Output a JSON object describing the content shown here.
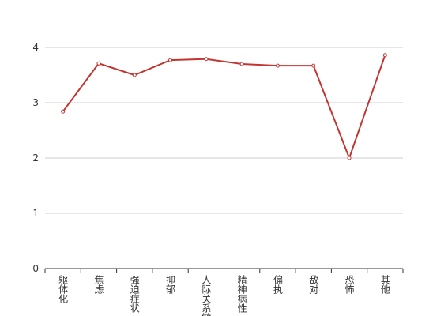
{
  "chart_data": {
    "type": "line",
    "categories": [
      "躯体化",
      "焦虑",
      "强迫症状",
      "抑郁",
      "人际关系敏感",
      "精神病性",
      "偏执",
      "敌对",
      "恐怖",
      "其他"
    ],
    "series": [
      {
        "color": "#c23531",
        "values": [
          2.84,
          3.71,
          3.5,
          3.77,
          3.79,
          3.7,
          3.67,
          3.67,
          2.0,
          3.86
        ]
      }
    ],
    "ylim": [
      0,
      4
    ],
    "yticks": [
      0,
      1,
      2,
      3,
      4
    ],
    "grid": true
  }
}
